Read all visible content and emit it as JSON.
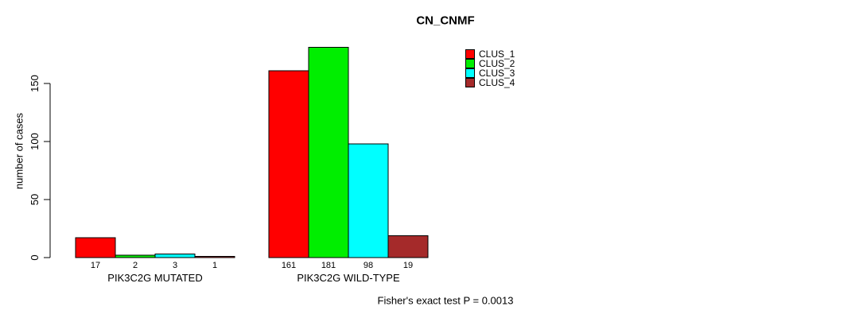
{
  "chart_data": {
    "type": "bar",
    "title": "CN_CNMF",
    "ylabel": "number of cases",
    "xlabel": "",
    "annotation": "Fisher's exact test P = 0.0013",
    "categories": [
      "PIK3C2G MUTATED",
      "PIK3C2G WILD-TYPE"
    ],
    "series": [
      {
        "name": "CLUS_1",
        "color": "#FF0000",
        "values": [
          17,
          161
        ]
      },
      {
        "name": "CLUS_2",
        "color": "#00EE00",
        "values": [
          2,
          181
        ]
      },
      {
        "name": "CLUS_3",
        "color": "#00FFFF",
        "values": [
          3,
          98
        ]
      },
      {
        "name": "CLUS_4",
        "color": "#A52A2A",
        "values": [
          1,
          19
        ]
      }
    ],
    "yticks": [
      0,
      50,
      100,
      150
    ],
    "ylim": [
      0,
      185
    ],
    "grid": false,
    "bar_border_color": "#000000",
    "legend_position": "top-right",
    "value_labels_shown": true
  }
}
